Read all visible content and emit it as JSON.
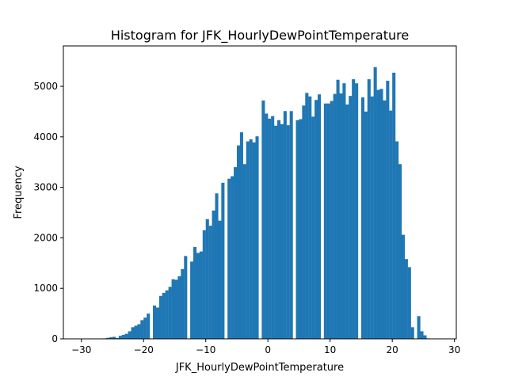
{
  "chart_data": {
    "type": "bar",
    "title": "Histogram for JFK_HourlyDewPointTemperature",
    "xlabel": "JFK_HourlyDewPointTemperature",
    "ylabel": "Frequency",
    "xlim": [
      -32.9,
      30.3
    ],
    "ylim": [
      0,
      5800
    ],
    "xticks": [
      -30,
      -20,
      -10,
      0,
      10,
      20,
      30
    ],
    "yticks": [
      0,
      1000,
      2000,
      3000,
      4000,
      5000
    ],
    "bin_width": 0.5,
    "bins_start": -30.0,
    "grid": false,
    "legend": "none",
    "bar_color": "#1f77b4",
    "values": [
      0,
      0,
      0,
      0,
      0,
      0,
      5,
      10,
      20,
      30,
      40,
      15,
      60,
      80,
      100,
      150,
      230,
      260,
      290,
      370,
      420,
      500,
      0,
      660,
      620,
      850,
      910,
      960,
      1030,
      1180,
      1170,
      1240,
      1380,
      1640,
      0,
      1530,
      1820,
      1700,
      1730,
      2150,
      2370,
      2240,
      2540,
      2880,
      2340,
      3090,
      0,
      3170,
      3220,
      3400,
      3830,
      4090,
      3460,
      3910,
      3950,
      3890,
      4010,
      0,
      4720,
      4460,
      4360,
      4410,
      4220,
      4330,
      4250,
      4510,
      4230,
      4510,
      0,
      4330,
      4350,
      4620,
      4870,
      4800,
      4400,
      4730,
      4840,
      0,
      4660,
      4660,
      4710,
      4850,
      5130,
      4860,
      5060,
      4640,
      4810,
      5140,
      5060,
      0,
      4780,
      4500,
      5140,
      4800,
      5380,
      4930,
      4950,
      4720,
      5110,
      4520,
      5270,
      3910,
      3460,
      2060,
      1580,
      1420,
      230,
      0,
      450,
      150,
      70,
      10,
      0,
      0
    ]
  }
}
